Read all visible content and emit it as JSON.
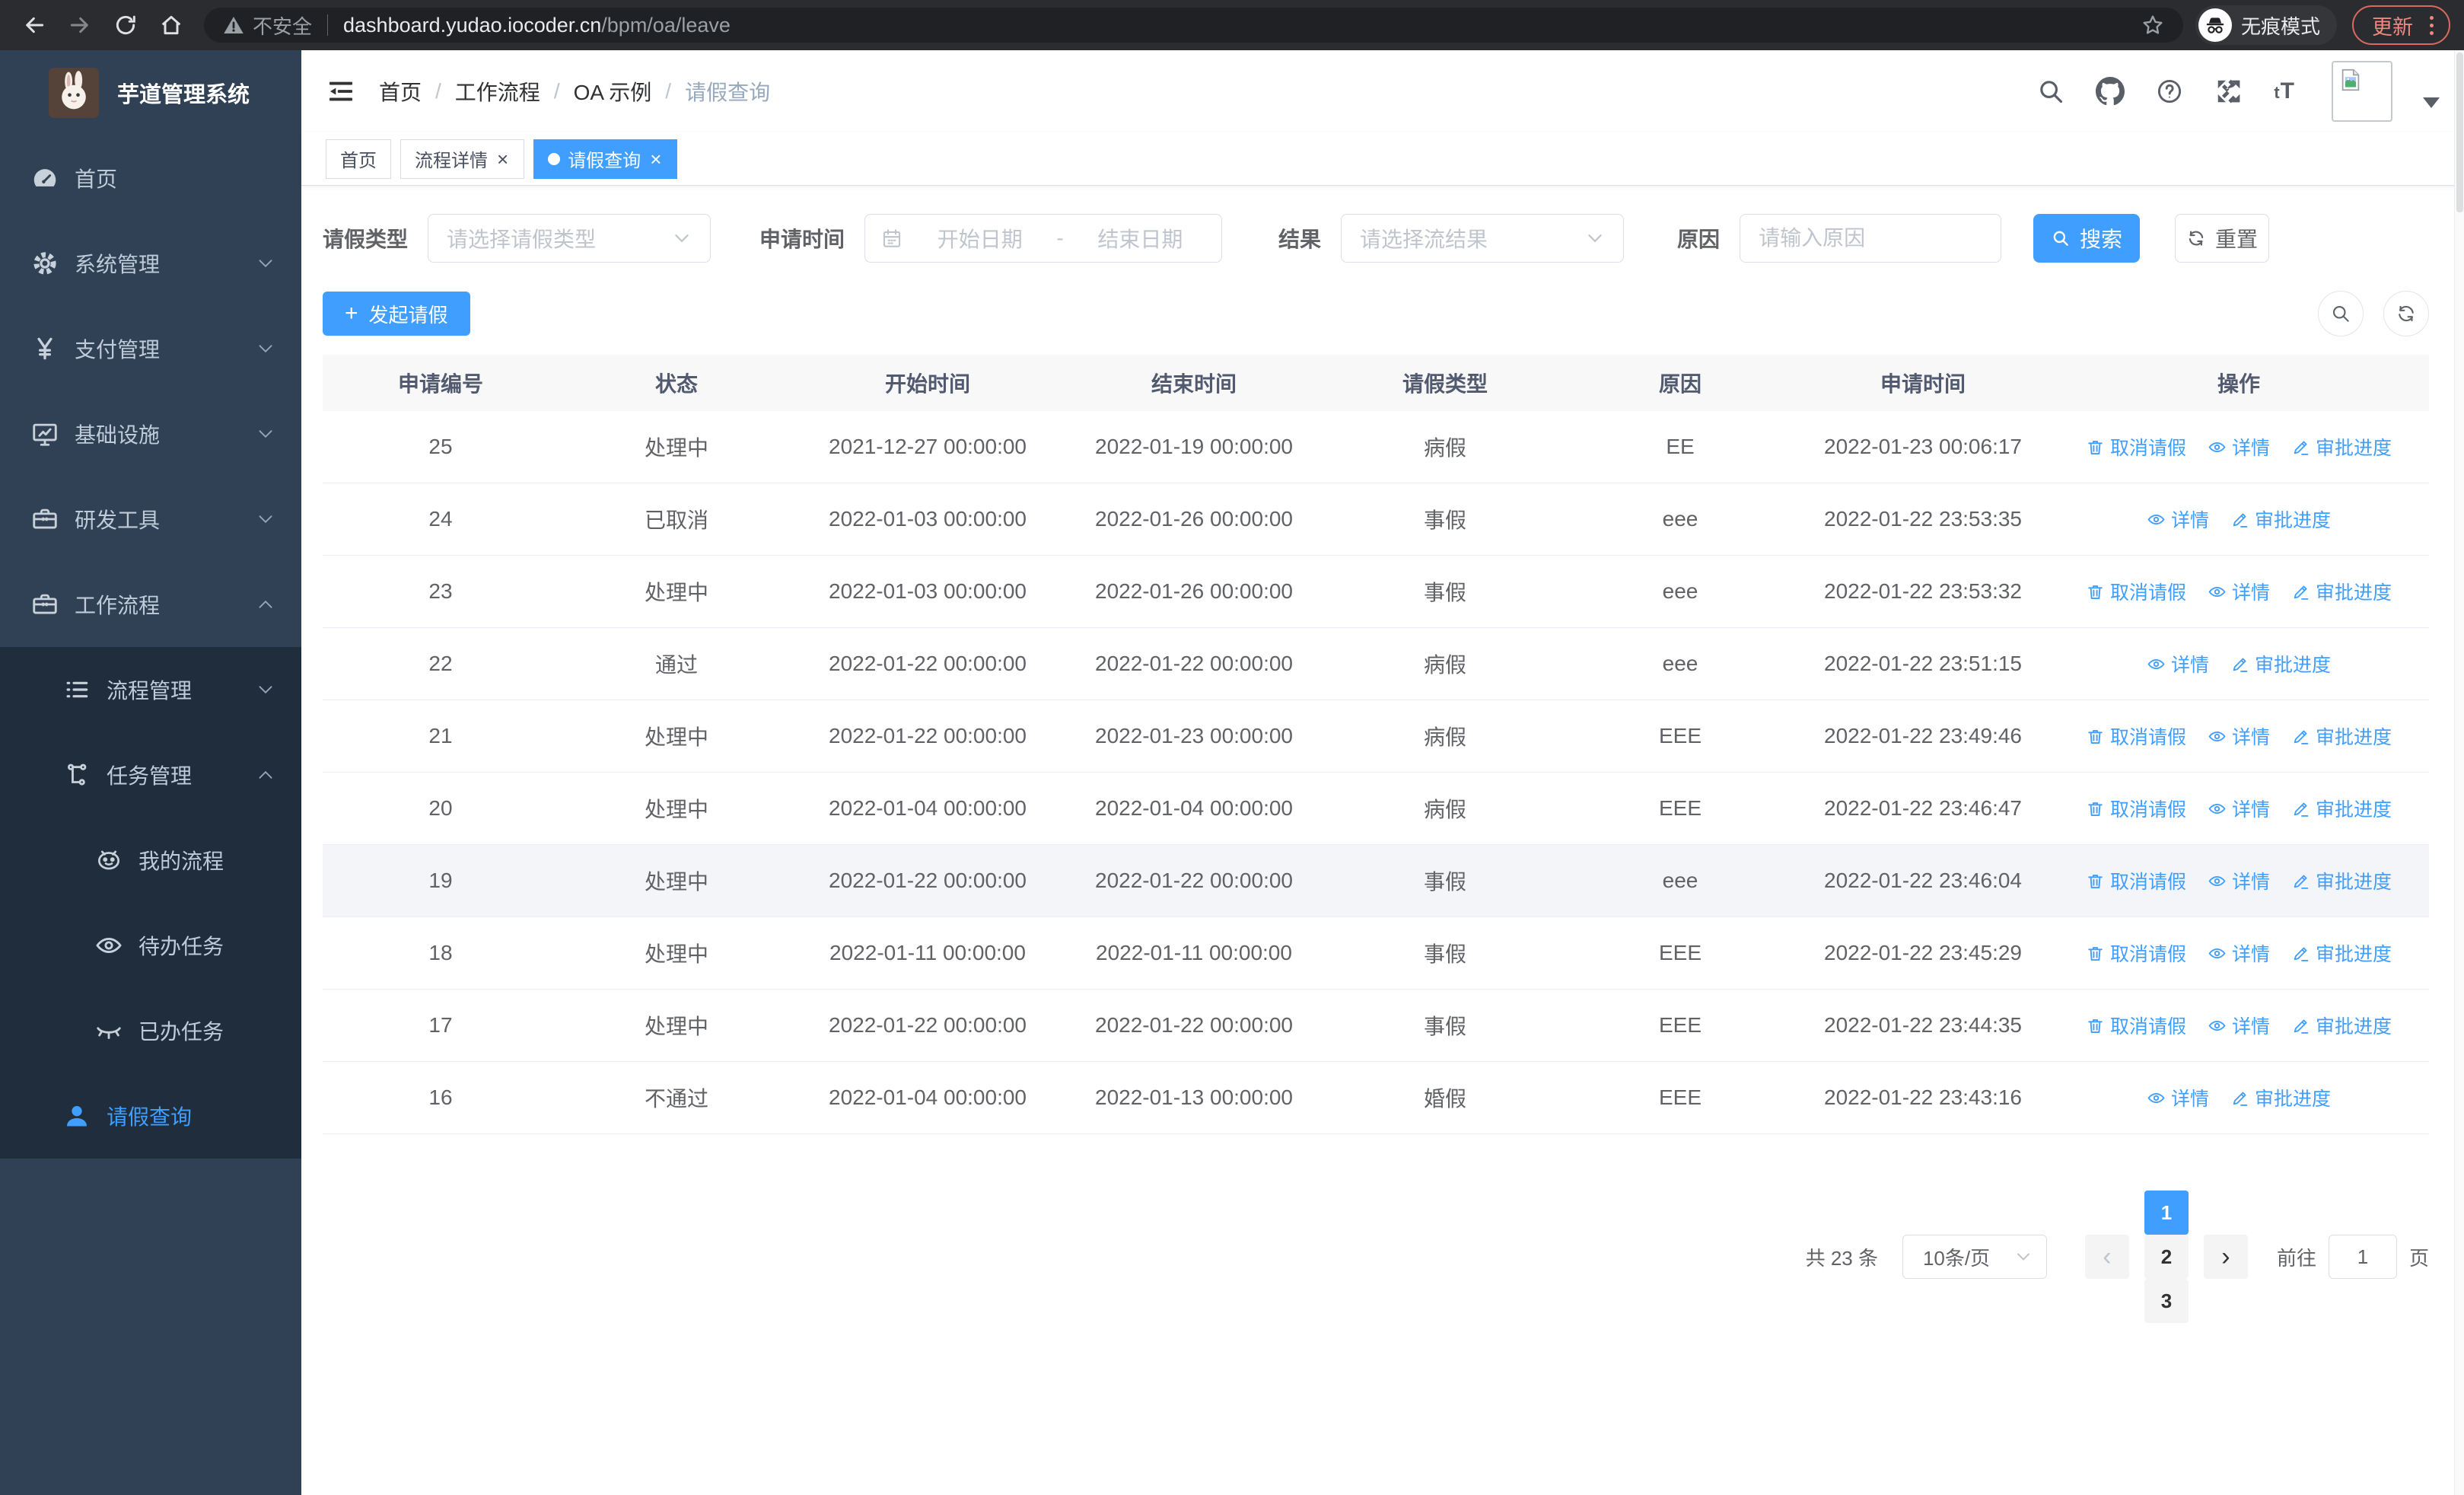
{
  "browser": {
    "security_label": "不安全",
    "url_domain": "dashboard.yudao.iocoder.cn",
    "url_path": "/bpm/oa/leave",
    "incognito_label": "无痕模式",
    "update_label": "更新"
  },
  "sidebar": {
    "title": "芋道管理系统",
    "menu": [
      {
        "key": "home",
        "label": "首页",
        "icon": "dashboard-icon",
        "level": 1
      },
      {
        "key": "system",
        "label": "系统管理",
        "icon": "gear-icon",
        "level": 1,
        "chevron": "down"
      },
      {
        "key": "payment",
        "label": "支付管理",
        "icon": "yen-icon",
        "level": 1,
        "chevron": "down"
      },
      {
        "key": "infrastructure",
        "label": "基础设施",
        "icon": "monitor-icon",
        "level": 1,
        "chevron": "down"
      },
      {
        "key": "dev-tools",
        "label": "研发工具",
        "icon": "briefcase-icon",
        "level": 1,
        "chevron": "down"
      },
      {
        "key": "workflow",
        "label": "工作流程",
        "icon": "briefcase-icon",
        "level": 1,
        "chevron": "up"
      },
      {
        "key": "process-mgmt",
        "label": "流程管理",
        "icon": "list-icon",
        "level": 2,
        "chevron": "down",
        "submenu": true
      },
      {
        "key": "task-mgmt",
        "label": "任务管理",
        "icon": "tree-icon",
        "level": 2,
        "chevron": "up",
        "submenu": true
      },
      {
        "key": "my-process",
        "label": "我的流程",
        "icon": "robot-icon",
        "level": 3,
        "submenu": true
      },
      {
        "key": "todo-tasks",
        "label": "待办任务",
        "icon": "eye-open-icon",
        "level": 3,
        "submenu": true
      },
      {
        "key": "done-tasks",
        "label": "已办任务",
        "icon": "eye-closed-icon",
        "level": 3,
        "submenu": true
      },
      {
        "key": "leave-query",
        "label": "请假查询",
        "icon": "user-icon",
        "level": 2,
        "submenu": true,
        "active": true
      }
    ]
  },
  "header": {
    "breadcrumb": [
      "首页",
      "工作流程",
      "OA 示例",
      "请假查询"
    ]
  },
  "tabs": [
    {
      "label": "首页",
      "closable": false,
      "active": false
    },
    {
      "label": "流程详情",
      "closable": true,
      "active": false
    },
    {
      "label": "请假查询",
      "closable": true,
      "active": true
    }
  ],
  "filters": {
    "leave_type_label": "请假类型",
    "leave_type_placeholder": "请选择请假类型",
    "apply_time_label": "申请时间",
    "start_placeholder": "开始日期",
    "range_separator": "-",
    "end_placeholder": "结束日期",
    "result_label": "结果",
    "result_placeholder": "请选择流结果",
    "reason_label": "原因",
    "reason_placeholder": "请输入原因",
    "search_label": "搜索",
    "reset_label": "重置"
  },
  "toolbar": {
    "create_label": "发起请假"
  },
  "table": {
    "columns": [
      "申请编号",
      "状态",
      "开始时间",
      "结束时间",
      "请假类型",
      "原因",
      "申请时间",
      "操作"
    ],
    "action_labels": {
      "cancel": "取消请假",
      "detail": "详情",
      "progress": "审批进度"
    },
    "rows": [
      {
        "id": "25",
        "status": "处理中",
        "start": "2021-12-27 00:00:00",
        "end": "2022-01-19 00:00:00",
        "type": "病假",
        "reason": "EE",
        "apply_time": "2022-01-23 00:06:17",
        "actions": [
          "cancel",
          "detail",
          "progress"
        ],
        "highlight": false
      },
      {
        "id": "24",
        "status": "已取消",
        "start": "2022-01-03 00:00:00",
        "end": "2022-01-26 00:00:00",
        "type": "事假",
        "reason": "eee",
        "apply_time": "2022-01-22 23:53:35",
        "actions": [
          "detail",
          "progress"
        ],
        "highlight": false
      },
      {
        "id": "23",
        "status": "处理中",
        "start": "2022-01-03 00:00:00",
        "end": "2022-01-26 00:00:00",
        "type": "事假",
        "reason": "eee",
        "apply_time": "2022-01-22 23:53:32",
        "actions": [
          "cancel",
          "detail",
          "progress"
        ],
        "highlight": false
      },
      {
        "id": "22",
        "status": "通过",
        "start": "2022-01-22 00:00:00",
        "end": "2022-01-22 00:00:00",
        "type": "病假",
        "reason": "eee",
        "apply_time": "2022-01-22 23:51:15",
        "actions": [
          "detail",
          "progress"
        ],
        "highlight": false
      },
      {
        "id": "21",
        "status": "处理中",
        "start": "2022-01-22 00:00:00",
        "end": "2022-01-23 00:00:00",
        "type": "病假",
        "reason": "EEE",
        "apply_time": "2022-01-22 23:49:46",
        "actions": [
          "cancel",
          "detail",
          "progress"
        ],
        "highlight": false
      },
      {
        "id": "20",
        "status": "处理中",
        "start": "2022-01-04 00:00:00",
        "end": "2022-01-04 00:00:00",
        "type": "病假",
        "reason": "EEE",
        "apply_time": "2022-01-22 23:46:47",
        "actions": [
          "cancel",
          "detail",
          "progress"
        ],
        "highlight": false
      },
      {
        "id": "19",
        "status": "处理中",
        "start": "2022-01-22 00:00:00",
        "end": "2022-01-22 00:00:00",
        "type": "事假",
        "reason": "eee",
        "apply_time": "2022-01-22 23:46:04",
        "actions": [
          "cancel",
          "detail",
          "progress"
        ],
        "highlight": true
      },
      {
        "id": "18",
        "status": "处理中",
        "start": "2022-01-11 00:00:00",
        "end": "2022-01-11 00:00:00",
        "type": "事假",
        "reason": "EEE",
        "apply_time": "2022-01-22 23:45:29",
        "actions": [
          "cancel",
          "detail",
          "progress"
        ],
        "highlight": false
      },
      {
        "id": "17",
        "status": "处理中",
        "start": "2022-01-22 00:00:00",
        "end": "2022-01-22 00:00:00",
        "type": "事假",
        "reason": "EEE",
        "apply_time": "2022-01-22 23:44:35",
        "actions": [
          "cancel",
          "detail",
          "progress"
        ],
        "highlight": false
      },
      {
        "id": "16",
        "status": "不通过",
        "start": "2022-01-04 00:00:00",
        "end": "2022-01-13 00:00:00",
        "type": "婚假",
        "reason": "EEE",
        "apply_time": "2022-01-22 23:43:16",
        "actions": [
          "detail",
          "progress"
        ],
        "highlight": false
      }
    ]
  },
  "pagination": {
    "total_label": "共 23 条",
    "page_size_label": "10条/页",
    "pages": [
      "1",
      "2",
      "3"
    ],
    "active_page": "1",
    "prev_symbol": "‹",
    "next_symbol": "›",
    "goto_label": "前往",
    "goto_value": "1",
    "unit_label": "页"
  },
  "colors": {
    "accent": "#409eff",
    "sidebar_bg": "#304156",
    "submenu_bg": "#1f2d3d",
    "sidebar_text": "#bfcbd9",
    "table_header_bg": "#f8f8f9",
    "row_highlight": "#f3f5f9"
  }
}
